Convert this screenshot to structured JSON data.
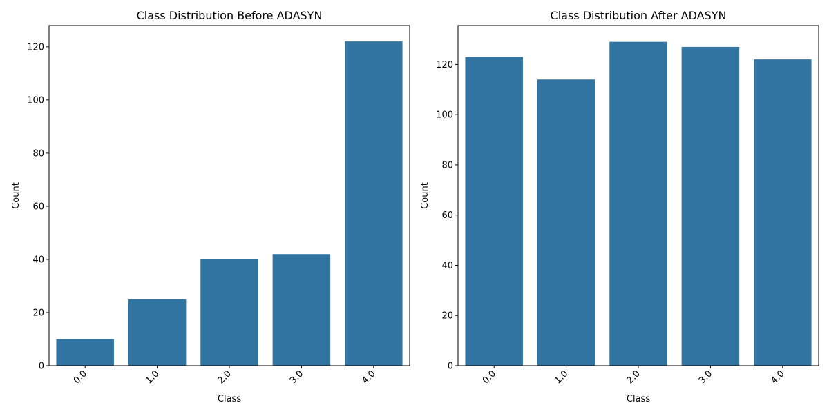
{
  "colors": {
    "bar": "#3274a1",
    "axis": "#000000",
    "background": "#ffffff"
  },
  "chart_data": [
    {
      "type": "bar",
      "title": "Class Distribution Before ADASYN",
      "xlabel": "Class",
      "ylabel": "Count",
      "categories": [
        "0.0",
        "1.0",
        "2.0",
        "3.0",
        "4.0"
      ],
      "values": [
        10,
        25,
        40,
        42,
        122
      ],
      "ylim": [
        0,
        128
      ],
      "yticks": [
        0,
        20,
        40,
        60,
        80,
        100,
        120
      ],
      "xtick_rotation": 45,
      "grid": false,
      "legend": "none"
    },
    {
      "type": "bar",
      "title": "Class Distribution After ADASYN",
      "xlabel": "Class",
      "ylabel": "Count",
      "categories": [
        "0.0",
        "1.0",
        "2.0",
        "3.0",
        "4.0"
      ],
      "values": [
        123,
        114,
        129,
        127,
        122
      ],
      "ylim": [
        0,
        135.5
      ],
      "yticks": [
        0,
        20,
        40,
        60,
        80,
        100,
        120
      ],
      "xtick_rotation": 45,
      "grid": false,
      "legend": "none"
    }
  ]
}
